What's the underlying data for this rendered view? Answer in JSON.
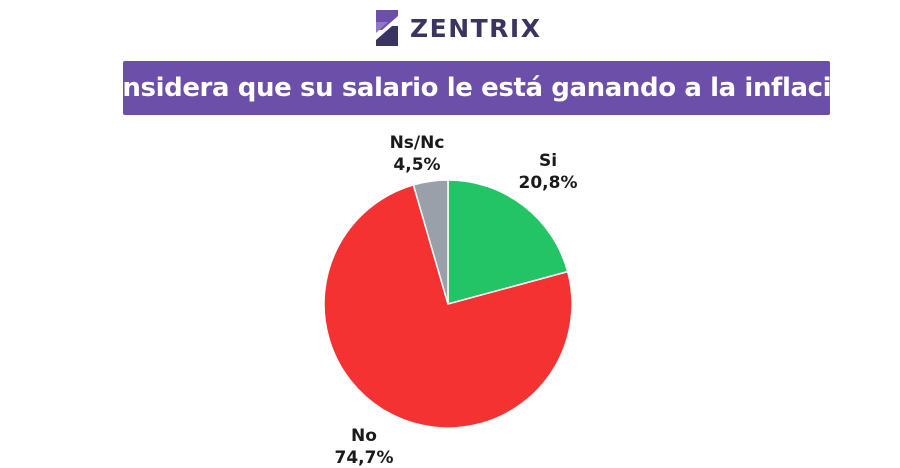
{
  "brand": {
    "name": "ZENTRIX",
    "accent": "#3a3560",
    "logo_icon": "zentrix-logo-icon"
  },
  "title_bar": {
    "text": "¿Considera que su salario le está ganando a la inflación?",
    "background": "#6c4fa8"
  },
  "chart_data": {
    "type": "pie",
    "title": "¿Considera que su salario le está ganando a la inflación?",
    "start_angle_deg": 0,
    "direction": "clockwise",
    "slices": [
      {
        "label": "Si",
        "value": 20.8,
        "value_text": "20,8%",
        "color": "#22c466"
      },
      {
        "label": "No",
        "value": 74.7,
        "value_text": "74,7%",
        "color": "#f53232"
      },
      {
        "label": "Ns/Nc",
        "value": 4.5,
        "value_text": "4,5%",
        "color": "#9aa0aa"
      }
    ],
    "legend": "none"
  }
}
